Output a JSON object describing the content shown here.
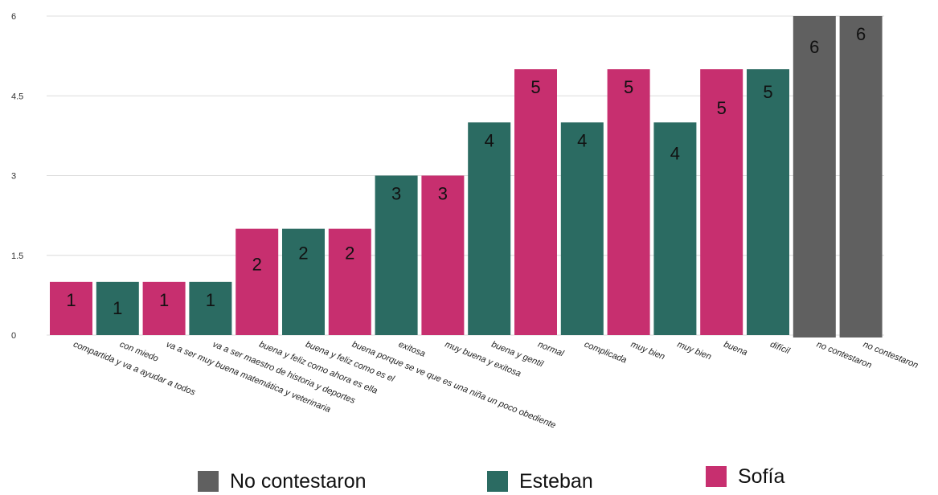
{
  "chart_data": {
    "type": "bar",
    "title": "",
    "xlabel": "",
    "ylabel": "",
    "ylim": [
      0,
      6
    ],
    "yticks": [
      "0",
      "1.5",
      "3",
      "4.5",
      "6"
    ],
    "grid": true,
    "categories": [
      "compartida y va a ayudar a todos",
      "con miedo",
      "va a ser muy buena matemática y veterinaria",
      "va a ser maestro de historia y deportes",
      "buena y feliz como ahora es ella",
      "buena y feliz como es el",
      "buena porque se ve que es una niña un poco obediente",
      "exitosa",
      "muy buena y exitosa",
      "buena y gentil",
      "normal",
      "complicada",
      "muy bien",
      "muy bien",
      "buena",
      "difícil",
      "no contestaron",
      "no contestaron"
    ],
    "values": [
      1,
      1,
      1,
      1,
      2,
      2,
      2,
      3,
      3,
      4,
      5,
      4,
      5,
      4,
      5,
      5,
      6,
      6
    ],
    "groups": [
      "Sofía",
      "Esteban",
      "Sofía",
      "Esteban",
      "Sofía",
      "Esteban",
      "Sofía",
      "Esteban",
      "Sofía",
      "Esteban",
      "Sofía",
      "Esteban",
      "Sofía",
      "Esteban",
      "Sofía",
      "Esteban",
      "No contestaron",
      "No contestaron"
    ],
    "data_labels": [
      "1",
      "1",
      "1",
      "1",
      "2",
      "2",
      "2",
      "3",
      "3",
      "4",
      "5",
      "4",
      "5",
      "4",
      "5",
      "5",
      "6",
      "6"
    ],
    "legend_position": "bottom",
    "legend": [
      {
        "name": "No contestaron",
        "color": "#606060"
      },
      {
        "name": "Esteban",
        "color": "#2b6b62"
      },
      {
        "name": "Sofía",
        "color": "#c72f6f"
      }
    ],
    "colors": {
      "Sofía": "#c72f6f",
      "Esteban": "#2b6b62",
      "No contestaron": "#606060"
    }
  }
}
